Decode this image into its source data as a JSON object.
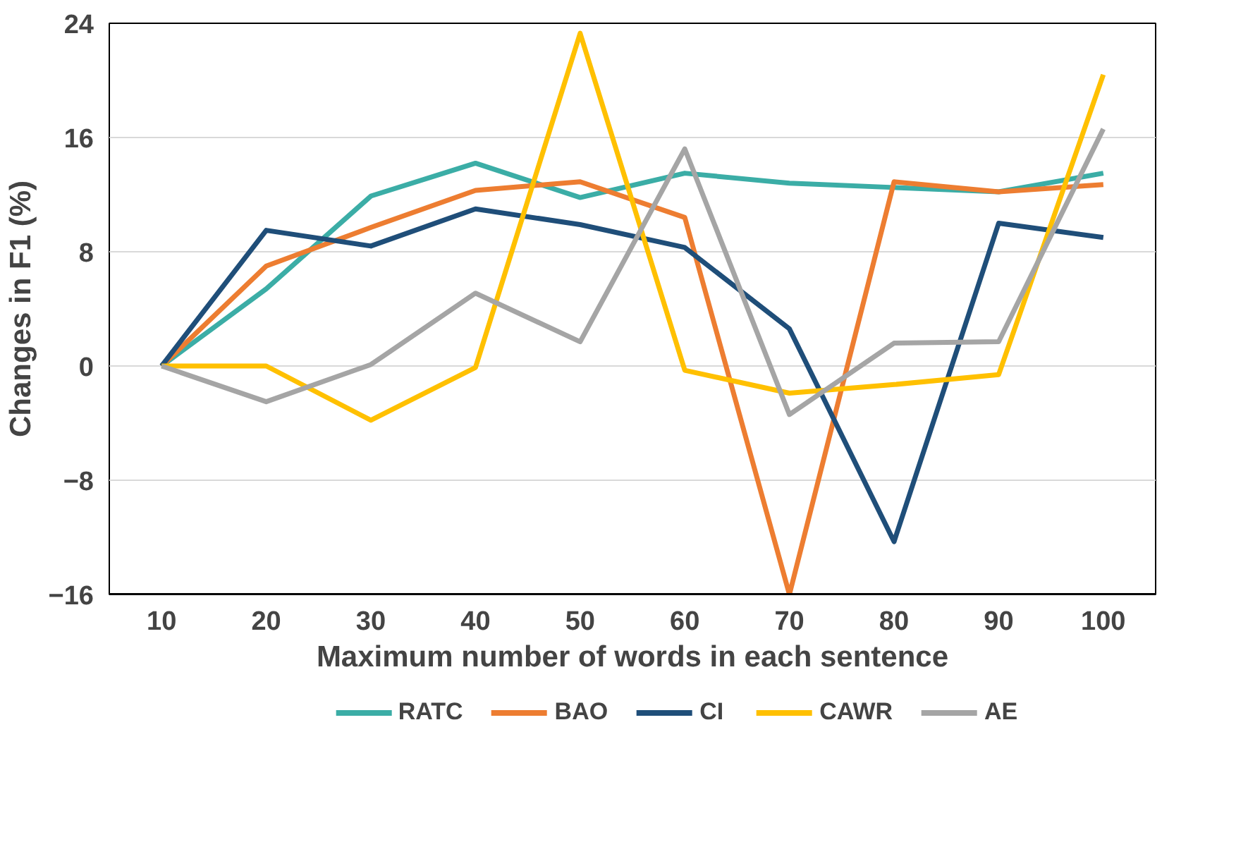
{
  "chart_data": {
    "type": "line",
    "xlabel": "Maximum number of words in each sentence",
    "ylabel": "Changes in F1 (%)",
    "categories": [
      "10",
      "20",
      "30",
      "40",
      "50",
      "60",
      "70",
      "80",
      "90",
      "100"
    ],
    "series": [
      {
        "name": "RATC",
        "color": "#3bada6",
        "values": [
          0,
          5.4,
          11.9,
          14.2,
          11.8,
          13.5,
          12.8,
          12.5,
          12.2,
          13.5
        ]
      },
      {
        "name": "BAO",
        "color": "#ed7d31",
        "values": [
          0,
          7.0,
          9.7,
          12.3,
          12.9,
          10.4,
          -16,
          12.9,
          12.2,
          12.7
        ]
      },
      {
        "name": "CI",
        "color": "#1f4e79",
        "values": [
          0,
          9.5,
          8.4,
          11.0,
          9.9,
          8.3,
          2.6,
          -12.3,
          10.0,
          9.0
        ]
      },
      {
        "name": "CAWR",
        "color": "#ffc000",
        "values": [
          0,
          0,
          -3.8,
          -0.1,
          23.3,
          -0.3,
          -1.9,
          -1.3,
          -0.6,
          20.4
        ]
      },
      {
        "name": "AE",
        "color": "#a5a5a5",
        "values": [
          0,
          -2.5,
          0.1,
          5.1,
          1.7,
          15.2,
          -3.4,
          1.6,
          1.7,
          16.6
        ]
      }
    ],
    "ylim": [
      -16,
      24
    ],
    "yticks": [
      -16,
      -8,
      0,
      8,
      16,
      24
    ],
    "grid": "y",
    "legend": "bottom",
    "marker": "none",
    "line_style": "solid"
  }
}
